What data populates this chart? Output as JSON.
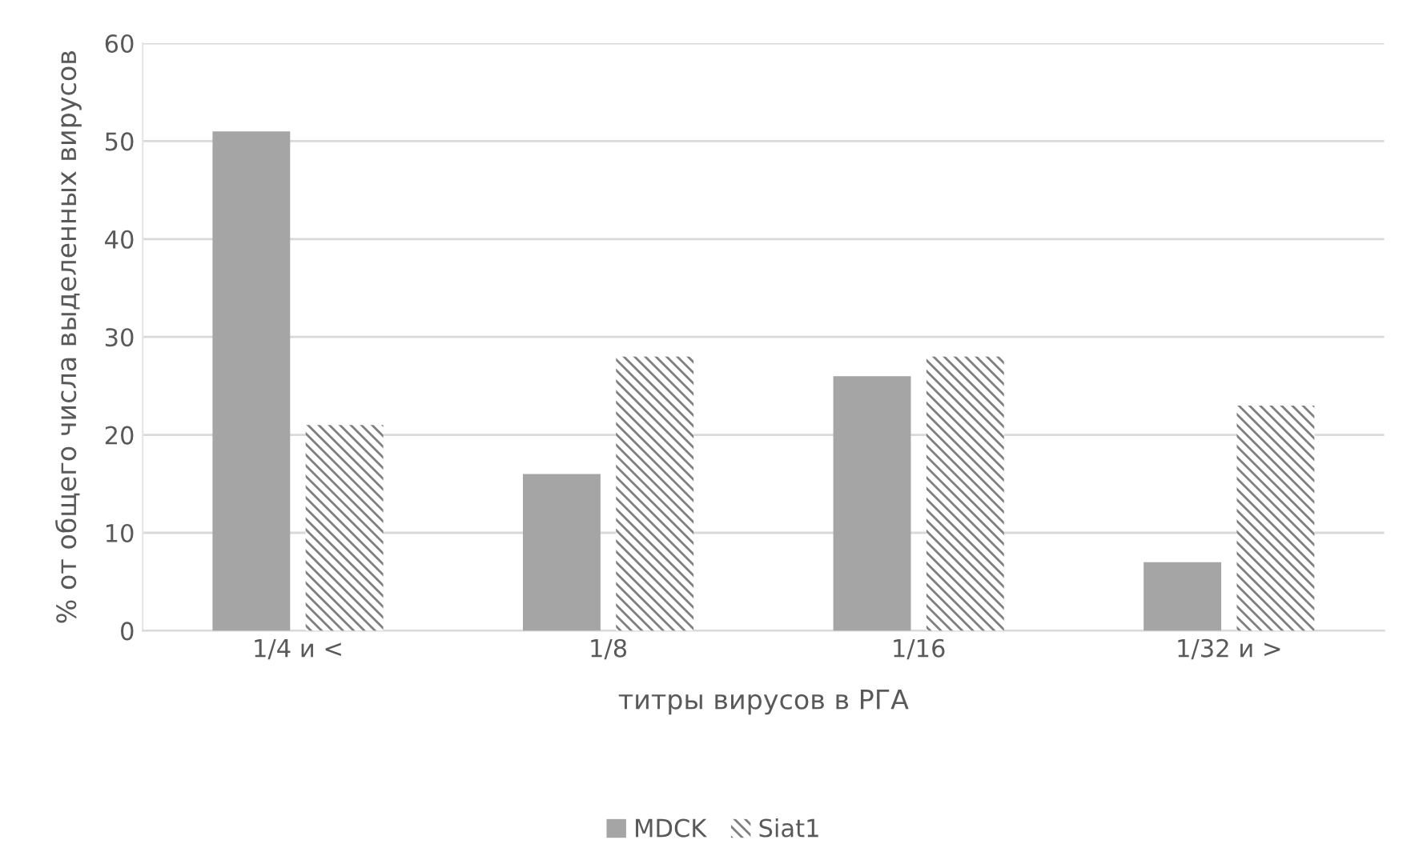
{
  "chart_data": {
    "type": "bar",
    "xlabel": "титры вирусов в РГА",
    "ylabel": "% от общего числа выделенных вирусов",
    "categories": [
      "1/4 и <",
      "1/8",
      "1/16",
      "1/32 и >"
    ],
    "series": [
      {
        "name": "MDCK",
        "color": "#a5a5a5",
        "values": [
          51,
          16,
          26,
          7
        ]
      },
      {
        "name": "Siat1",
        "color": "#7f7f7f",
        "values": [
          21,
          28,
          28,
          23
        ]
      }
    ],
    "ylim": [
      0,
      60
    ],
    "yticks": [
      0,
      10,
      20,
      30,
      40,
      50,
      60
    ],
    "grid": "y",
    "legend": "bottom"
  }
}
